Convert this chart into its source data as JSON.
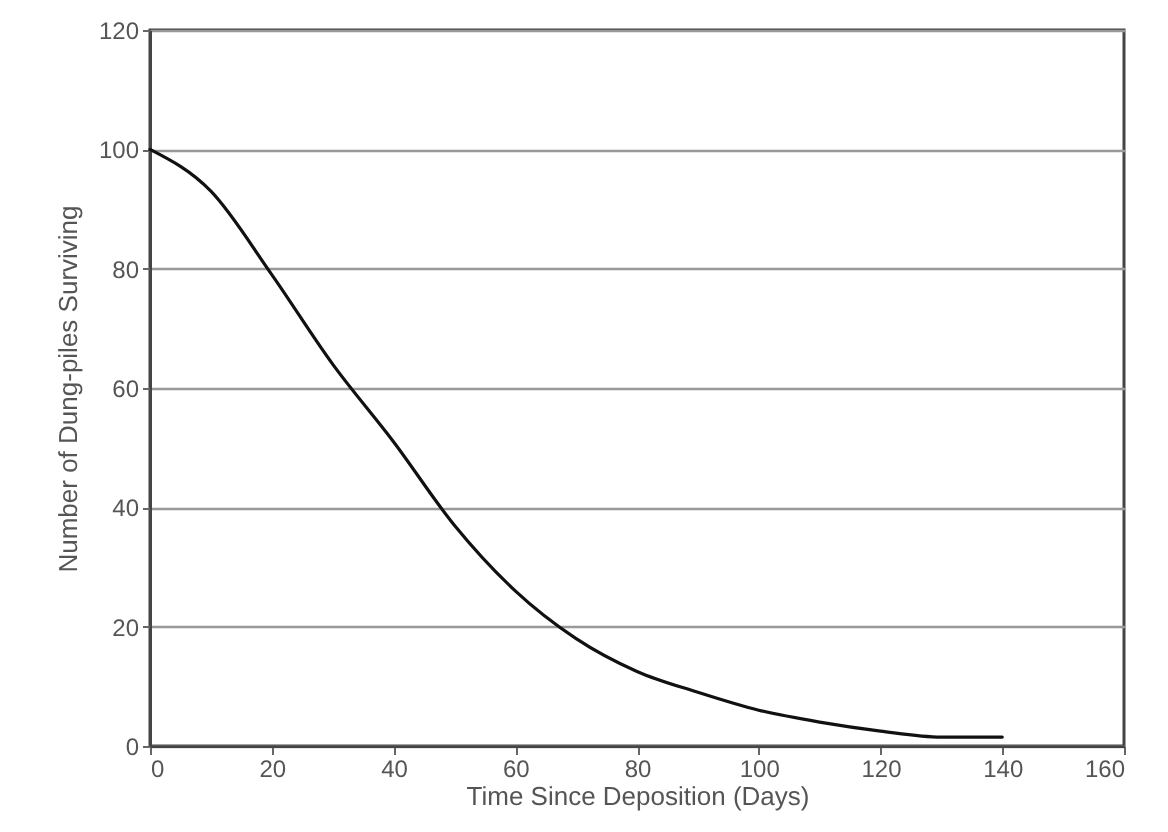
{
  "chart_data": {
    "type": "line",
    "xlabel": "Time Since Deposition (Days)",
    "ylabel": "Number of Dung-piles Surviving",
    "x": [
      0,
      10,
      20,
      30,
      40,
      50,
      60,
      70,
      80,
      90,
      100,
      110,
      120,
      130,
      140
    ],
    "series": [
      {
        "color": "#111111",
        "values": [
          100,
          93,
          79,
          64,
          51,
          37,
          26,
          18,
          12.5,
          9,
          6,
          4,
          2.5,
          1.5,
          1.5
        ]
      }
    ],
    "xlim": [
      0,
      160
    ],
    "xticks": [
      0,
      20,
      40,
      60,
      80,
      100,
      120,
      140,
      160
    ],
    "ylim": [
      0,
      120
    ],
    "yticks": [
      0,
      20,
      40,
      60,
      80,
      100,
      120
    ],
    "grid": "y",
    "marker": "none",
    "line_style": "solid"
  }
}
